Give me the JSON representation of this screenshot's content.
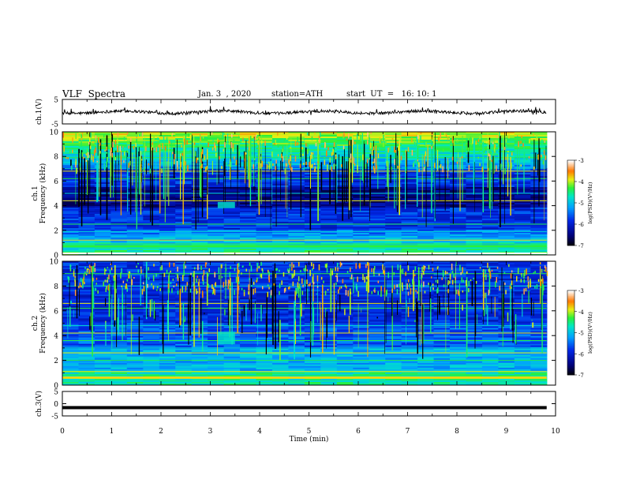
{
  "header": {
    "title": "VLF  Spectra",
    "date": "Jan. 3  , 2020",
    "station": "station=ATH",
    "start": "start  UT  =   16: 10: 1"
  },
  "chart_data": [
    {
      "type": "line",
      "ylabel": "ch.1(V)",
      "ylim": [
        -5,
        5
      ],
      "tick_labels": [
        "5",
        "-5"
      ],
      "xlim": [
        0,
        10
      ],
      "series": [
        {
          "color": "#000000"
        }
      ]
    },
    {
      "type": "heatmap",
      "ylabel": "ch.1\nFrequency  (kHz)",
      "ylim": [
        0,
        10
      ],
      "tick_labels": [
        "10",
        "8",
        "6",
        "4",
        "2",
        "0"
      ],
      "xlim": [
        0,
        10
      ],
      "colorbar": {
        "label": "log(PSD)(V²/Hz)",
        "ticks": [
          "-3",
          "-4",
          "-5",
          "-6",
          "-7"
        ],
        "range": [
          -7,
          -3
        ]
      }
    },
    {
      "type": "heatmap",
      "ylabel": "ch.2\nFrequency  (kHz)",
      "ylim": [
        0,
        10
      ],
      "tick_labels": [
        "10",
        "8",
        "6",
        "4",
        "2",
        "0"
      ],
      "xlim": [
        0,
        10
      ],
      "colorbar": {
        "label": "log(PSD)(V²/Hz)",
        "ticks": [
          "-3",
          "-4",
          "-5",
          "-6",
          "-7"
        ],
        "range": [
          -7,
          -3
        ]
      }
    },
    {
      "type": "line",
      "ylabel": "ch.3(V)",
      "ylim": [
        -5,
        5
      ],
      "tick_labels": [
        "5",
        "0",
        "-5"
      ],
      "xlim": [
        0,
        10
      ],
      "series": [
        {
          "color": "#000000"
        }
      ]
    }
  ],
  "x_axis": {
    "label": "Time  (min)",
    "tick_labels": [
      "0",
      "1",
      "2",
      "3",
      "4",
      "5",
      "6",
      "7",
      "8",
      "9",
      "10"
    ]
  }
}
